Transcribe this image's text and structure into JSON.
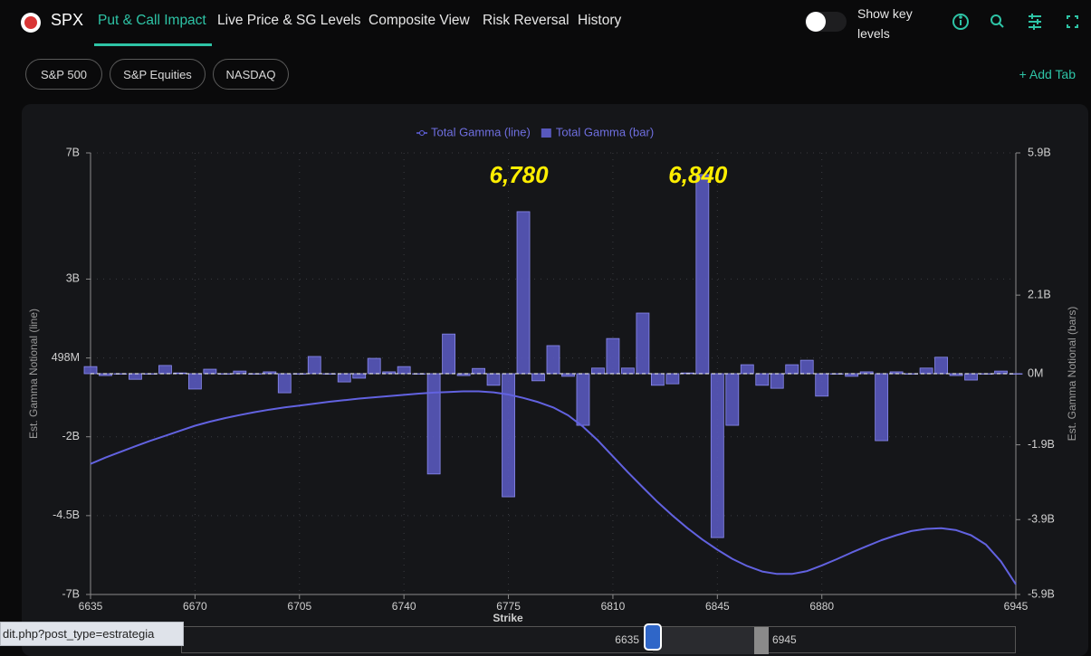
{
  "header": {
    "ticker": "SPX",
    "tabs": [
      "Put & Call Impact",
      "Live Price & SG Levels",
      "Composite View",
      "Risk Reversal",
      "History"
    ],
    "toggle_label": "Show key levels"
  },
  "subtabs": [
    "S&P 500",
    "S&P Equities",
    "NASDAQ"
  ],
  "add_tab": "+ Add Tab",
  "status_url": "dit.php?post_type=estrategia",
  "range_slider": {
    "from": "6635",
    "to": "6945"
  },
  "chart_data": {
    "type": "bar",
    "x_label": "Strike",
    "y_label": "Est. Gamma Notional (line)",
    "y2_label": "Est. Gamma Notional (bars)",
    "x": [
      6635,
      6640,
      6645,
      6650,
      6655,
      6660,
      6665,
      6670,
      6675,
      6680,
      6685,
      6690,
      6695,
      6700,
      6705,
      6710,
      6715,
      6720,
      6725,
      6730,
      6735,
      6740,
      6745,
      6750,
      6755,
      6760,
      6765,
      6770,
      6775,
      6780,
      6785,
      6790,
      6795,
      6800,
      6805,
      6810,
      6815,
      6820,
      6825,
      6830,
      6835,
      6840,
      6845,
      6850,
      6855,
      6860,
      6865,
      6870,
      6875,
      6880,
      6885,
      6890,
      6895,
      6900,
      6905,
      6910,
      6915,
      6920,
      6925,
      6930,
      6935,
      6940,
      6945
    ],
    "series": [
      {
        "name": "Total Gamma (line)",
        "type": "line",
        "color": "#6262e0",
        "values": [
          -2.86,
          -2.66,
          -2.48,
          -2.3,
          -2.13,
          -1.97,
          -1.81,
          -1.65,
          -1.52,
          -1.41,
          -1.31,
          -1.22,
          -1.14,
          -1.07,
          -1.01,
          -0.95,
          -0.89,
          -0.84,
          -0.79,
          -0.75,
          -0.71,
          -0.67,
          -0.63,
          -0.6,
          -0.58,
          -0.56,
          -0.56,
          -0.59,
          -0.66,
          -0.77,
          -0.9,
          -1.07,
          -1.32,
          -1.68,
          -2.12,
          -2.62,
          -3.12,
          -3.6,
          -4.07,
          -4.5,
          -4.9,
          -5.26,
          -5.58,
          -5.87,
          -6.1,
          -6.27,
          -6.35,
          -6.35,
          -6.26,
          -6.08,
          -5.88,
          -5.67,
          -5.47,
          -5.28,
          -5.12,
          -4.99,
          -4.92,
          -4.9,
          -4.96,
          -5.12,
          -5.42,
          -5.95,
          -6.68
        ]
      },
      {
        "name": "Total Gamma (bar)",
        "type": "bar",
        "axis": "y2",
        "color": "#5858bd",
        "values": [
          0.19,
          -0.05,
          0,
          -0.15,
          0,
          0.22,
          0.02,
          -0.41,
          0.12,
          0,
          0.07,
          0,
          0.05,
          -0.51,
          0,
          0.46,
          0,
          -0.22,
          -0.12,
          0.41,
          0.05,
          0.19,
          0,
          -2.68,
          1.06,
          -0.05,
          0.14,
          -0.31,
          -3.29,
          4.33,
          -0.19,
          0.75,
          -0.07,
          -1.38,
          0.15,
          0.94,
          0.15,
          1.62,
          -0.31,
          -0.27,
          0.02,
          5.32,
          -4.38,
          -1.38,
          0.24,
          -0.31,
          -0.39,
          0.24,
          0.36,
          -0.6,
          0,
          -0.07,
          0.05,
          -1.79,
          0.05,
          0,
          0.15,
          0.44,
          -0.05,
          -0.17,
          0,
          0.07,
          0
        ]
      }
    ],
    "xlim": [
      6635,
      6945
    ],
    "xticks": [
      6635,
      6670,
      6705,
      6740,
      6775,
      6810,
      6845,
      6880,
      6945
    ],
    "ylim": [
      -7,
      7
    ],
    "yticks": [
      {
        "value": 7,
        "label": "7B"
      },
      {
        "value": 3,
        "label": "3B"
      },
      {
        "value": 0.498,
        "label": "498M"
      },
      {
        "value": -2,
        "label": "-2B"
      },
      {
        "value": -4.5,
        "label": "-4.5B"
      },
      {
        "value": -7,
        "label": "-7B"
      }
    ],
    "y2lim": [
      -5.9,
      5.9
    ],
    "y2ticks": [
      {
        "value": 5.9,
        "label": "5.9B"
      },
      {
        "value": 2.1,
        "label": "2.1B"
      },
      {
        "value": 0,
        "label": "0M"
      },
      {
        "value": -1.9,
        "label": "-1.9B"
      },
      {
        "value": -3.9,
        "label": "-3.9B"
      },
      {
        "value": -5.9,
        "label": "-5.9B"
      }
    ],
    "annotations": [
      {
        "x": 6780,
        "text": "6,780"
      },
      {
        "x": 6840,
        "text": "6,840"
      }
    ],
    "grid": true,
    "legend": "top"
  }
}
